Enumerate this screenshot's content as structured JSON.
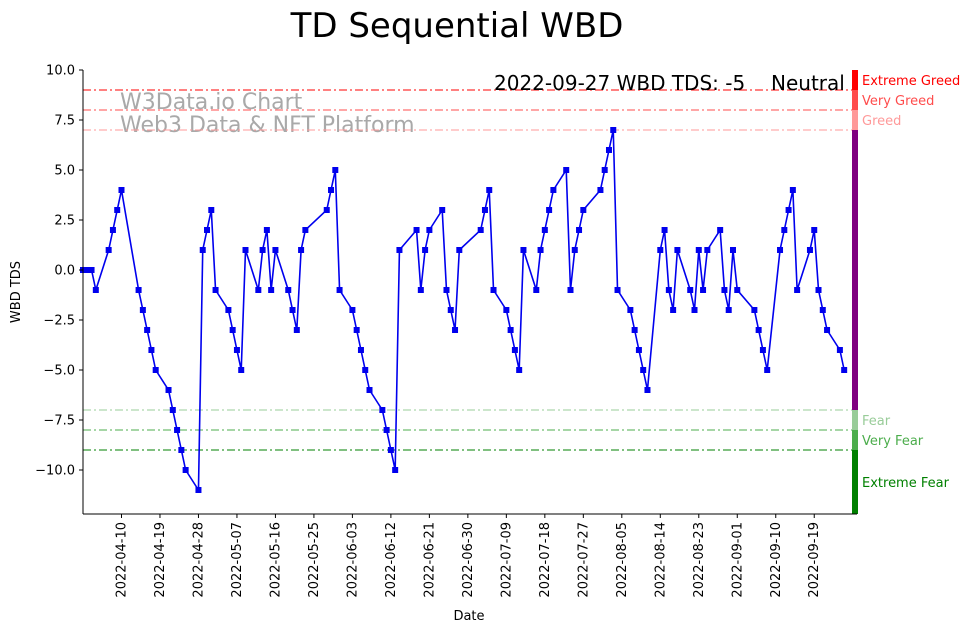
{
  "chart_data": {
    "type": "line",
    "title": "TD Sequential WBD",
    "xlabel": "Date",
    "ylabel": "WBD TDS",
    "ylim": [
      -12.2,
      10
    ],
    "yticks": [
      10,
      7.5,
      5,
      2.5,
      0,
      -2.5,
      -5,
      -7.5,
      -10
    ],
    "ytick_labels": [
      "10.0",
      "7.5",
      "5.0",
      "2.5",
      "0.0",
      "−2.5",
      "−5.0",
      "−7.5",
      "−10.0"
    ],
    "x_start": "2022-04-01",
    "x_end": "2022-09-29",
    "xticks": [
      "2022-04-10",
      "2022-04-19",
      "2022-04-28",
      "2022-05-07",
      "2022-05-16",
      "2022-05-25",
      "2022-06-03",
      "2022-06-12",
      "2022-06-21",
      "2022-06-30",
      "2022-07-09",
      "2022-07-18",
      "2022-07-27",
      "2022-08-05",
      "2022-08-14",
      "2022-08-23",
      "2022-09-01",
      "2022-09-10",
      "2022-09-19"
    ],
    "watermark": [
      "W3Data.io Chart",
      "Web3 Data & NFT Platform"
    ],
    "annotation": {
      "text": "2022-09-27 WBD TDS: -5",
      "status": "Neutral",
      "status_color": "#800080"
    },
    "line_color": "#0000ee",
    "zones": [
      {
        "name": "Extreme Greed",
        "level": 9,
        "color": "#ff0000"
      },
      {
        "name": "Very Greed",
        "level": 8,
        "color": "#ff4c4c"
      },
      {
        "name": "Greed",
        "level": 7,
        "color": "#ff9999"
      },
      {
        "name": "Fear",
        "level": -7,
        "color": "#99cc99"
      },
      {
        "name": "Very Fear",
        "level": -8,
        "color": "#4cad4c"
      },
      {
        "name": "Extreme Fear",
        "level": -9,
        "color": "#008000"
      }
    ],
    "neutral_color": "#800080",
    "series": [
      {
        "values": [
          [
            "2022-04-01",
            0
          ],
          [
            "2022-04-02",
            0
          ],
          [
            "2022-04-03",
            0
          ],
          [
            "2022-04-04",
            -1
          ],
          [
            "2022-04-07",
            1
          ],
          [
            "2022-04-08",
            2
          ],
          [
            "2022-04-09",
            3
          ],
          [
            "2022-04-10",
            4
          ],
          [
            "2022-04-14",
            -1
          ],
          [
            "2022-04-15",
            -2
          ],
          [
            "2022-04-16",
            -3
          ],
          [
            "2022-04-17",
            -4
          ],
          [
            "2022-04-18",
            -5
          ],
          [
            "2022-04-21",
            -6
          ],
          [
            "2022-04-22",
            -7
          ],
          [
            "2022-04-23",
            -8
          ],
          [
            "2022-04-24",
            -9
          ],
          [
            "2022-04-25",
            -10
          ],
          [
            "2022-04-28",
            -11
          ],
          [
            "2022-04-29",
            1
          ],
          [
            "2022-04-30",
            2
          ],
          [
            "2022-05-01",
            3
          ],
          [
            "2022-05-02",
            -1
          ],
          [
            "2022-05-05",
            -2
          ],
          [
            "2022-05-06",
            -3
          ],
          [
            "2022-05-07",
            -4
          ],
          [
            "2022-05-08",
            -5
          ],
          [
            "2022-05-09",
            1
          ],
          [
            "2022-05-12",
            -1
          ],
          [
            "2022-05-13",
            1
          ],
          [
            "2022-05-14",
            2
          ],
          [
            "2022-05-15",
            -1
          ],
          [
            "2022-05-16",
            1
          ],
          [
            "2022-05-19",
            -1
          ],
          [
            "2022-05-20",
            -2
          ],
          [
            "2022-05-21",
            -3
          ],
          [
            "2022-05-22",
            1
          ],
          [
            "2022-05-23",
            2
          ],
          [
            "2022-05-28",
            3
          ],
          [
            "2022-05-29",
            4
          ],
          [
            "2022-05-30",
            5
          ],
          [
            "2022-05-31",
            -1
          ],
          [
            "2022-06-03",
            -2
          ],
          [
            "2022-06-04",
            -3
          ],
          [
            "2022-06-05",
            -4
          ],
          [
            "2022-06-06",
            -5
          ],
          [
            "2022-06-07",
            -6
          ],
          [
            "2022-06-10",
            -7
          ],
          [
            "2022-06-11",
            -8
          ],
          [
            "2022-06-12",
            -9
          ],
          [
            "2022-06-13",
            -10
          ],
          [
            "2022-06-14",
            1
          ],
          [
            "2022-06-18",
            2
          ],
          [
            "2022-06-19",
            -1
          ],
          [
            "2022-06-20",
            1
          ],
          [
            "2022-06-21",
            2
          ],
          [
            "2022-06-24",
            3
          ],
          [
            "2022-06-25",
            -1
          ],
          [
            "2022-06-26",
            -2
          ],
          [
            "2022-06-27",
            -3
          ],
          [
            "2022-06-28",
            1
          ],
          [
            "2022-07-03",
            2
          ],
          [
            "2022-07-04",
            3
          ],
          [
            "2022-07-05",
            4
          ],
          [
            "2022-07-06",
            -1
          ],
          [
            "2022-07-09",
            -2
          ],
          [
            "2022-07-10",
            -3
          ],
          [
            "2022-07-11",
            -4
          ],
          [
            "2022-07-12",
            -5
          ],
          [
            "2022-07-13",
            1
          ],
          [
            "2022-07-16",
            -1
          ],
          [
            "2022-07-17",
            1
          ],
          [
            "2022-07-18",
            2
          ],
          [
            "2022-07-19",
            3
          ],
          [
            "2022-07-20",
            4
          ],
          [
            "2022-07-23",
            5
          ],
          [
            "2022-07-24",
            -1
          ],
          [
            "2022-07-25",
            1
          ],
          [
            "2022-07-26",
            2
          ],
          [
            "2022-07-27",
            3
          ],
          [
            "2022-07-31",
            4
          ],
          [
            "2022-08-01",
            5
          ],
          [
            "2022-08-02",
            6
          ],
          [
            "2022-08-03",
            7
          ],
          [
            "2022-08-04",
            -1
          ],
          [
            "2022-08-07",
            -2
          ],
          [
            "2022-08-08",
            -3
          ],
          [
            "2022-08-09",
            -4
          ],
          [
            "2022-08-10",
            -5
          ],
          [
            "2022-08-11",
            -6
          ],
          [
            "2022-08-14",
            1
          ],
          [
            "2022-08-15",
            2
          ],
          [
            "2022-08-16",
            -1
          ],
          [
            "2022-08-17",
            -2
          ],
          [
            "2022-08-18",
            1
          ],
          [
            "2022-08-21",
            -1
          ],
          [
            "2022-08-22",
            -2
          ],
          [
            "2022-08-23",
            1
          ],
          [
            "2022-08-24",
            -1
          ],
          [
            "2022-08-25",
            1
          ],
          [
            "2022-08-28",
            2
          ],
          [
            "2022-08-29",
            -1
          ],
          [
            "2022-08-30",
            -2
          ],
          [
            "2022-08-31",
            1
          ],
          [
            "2022-09-01",
            -1
          ],
          [
            "2022-09-05",
            -2
          ],
          [
            "2022-09-06",
            -3
          ],
          [
            "2022-09-07",
            -4
          ],
          [
            "2022-09-08",
            -5
          ],
          [
            "2022-09-11",
            1
          ],
          [
            "2022-09-12",
            2
          ],
          [
            "2022-09-13",
            3
          ],
          [
            "2022-09-14",
            4
          ],
          [
            "2022-09-15",
            -1
          ],
          [
            "2022-09-18",
            1
          ],
          [
            "2022-09-19",
            2
          ],
          [
            "2022-09-20",
            -1
          ],
          [
            "2022-09-21",
            -2
          ],
          [
            "2022-09-22",
            -3
          ],
          [
            "2022-09-25",
            -4
          ],
          [
            "2022-09-26",
            -5
          ]
        ]
      }
    ]
  }
}
